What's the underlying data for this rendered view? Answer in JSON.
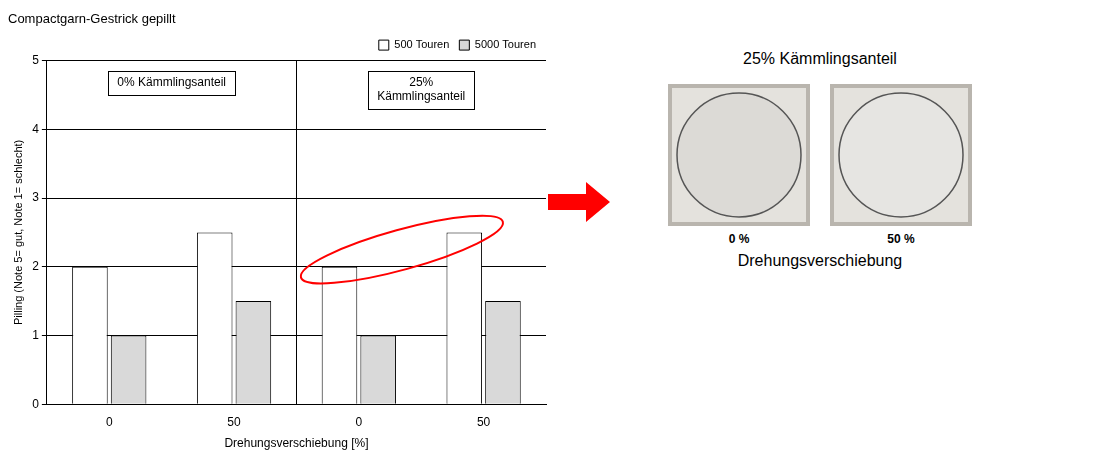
{
  "chart_data": {
    "type": "bar",
    "title": "Compactgarn-Gestrick gepillt",
    "x_label": "Drehungsverschiebung [%]",
    "y_label": "Pilling (Note 5= gut, Note 1= schlecht)",
    "categories": [
      "0",
      "50",
      "0",
      "50"
    ],
    "groups": [
      "0% Kämmlingsanteil",
      "25% Kämmlingsanteil"
    ],
    "series": [
      {
        "name": "500 Touren",
        "color": "#ffffff",
        "values": [
          2,
          2.5,
          2,
          2.5
        ]
      },
      {
        "name": "5000 Touren",
        "color": "#d9d9d9",
        "values": [
          1,
          1.5,
          1,
          1.5
        ]
      }
    ],
    "ylim": [
      0,
      5
    ],
    "yticks": [
      0,
      1,
      2,
      3,
      4,
      5
    ],
    "grid": true,
    "legend": "top-right"
  },
  "photo_panel": {
    "title": "25% Kämmlingsanteil",
    "images": [
      {
        "label": "0 %"
      },
      {
        "label": "50 %"
      }
    ],
    "caption": "Drehungsverschiebung"
  }
}
